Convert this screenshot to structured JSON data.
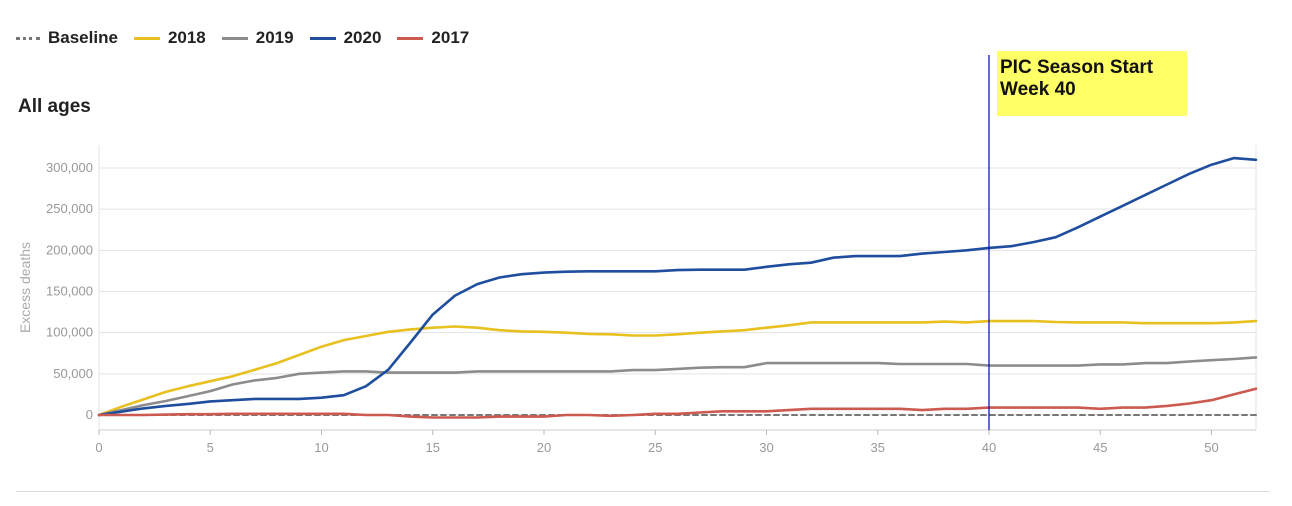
{
  "legend": {
    "items": [
      {
        "label": "Baseline",
        "color": "#777777",
        "dashed": true
      },
      {
        "label": "2018",
        "color": "#e8c020"
      },
      {
        "label": "2019",
        "color": "#8c8c8c"
      },
      {
        "label": "2020",
        "color": "#1f4e9e"
      },
      {
        "label": "2017",
        "color": "#cc5a50"
      }
    ]
  },
  "panel_title": "All ages",
  "annotation": {
    "line1": "PIC Season Start",
    "line2": "Week 40",
    "week": 40,
    "line_color": "#0000cc",
    "box_color": "#ffff66"
  },
  "chart_data": {
    "type": "line",
    "title": "All ages",
    "xlabel": "",
    "ylabel": "Excess deaths",
    "xlim": [
      0,
      52
    ],
    "ylim": [
      -12000,
      330000
    ],
    "xticks": [
      0,
      5,
      10,
      15,
      20,
      25,
      30,
      35,
      40,
      45,
      50
    ],
    "yticks": [
      0,
      50000,
      100000,
      150000,
      200000,
      250000,
      300000
    ],
    "ytick_labels": [
      "0",
      "50,000",
      "100,000",
      "150,000",
      "200,000",
      "250,000",
      "300,000"
    ],
    "grid": true,
    "legend_position": "top-left",
    "series": [
      {
        "name": "Baseline",
        "color": "#777777",
        "dashed": true,
        "x": [
          0,
          52
        ],
        "y": [
          0,
          0
        ]
      },
      {
        "name": "2018",
        "color": "#e8c020",
        "x": [
          0,
          1,
          2,
          3,
          4,
          5,
          6,
          7,
          8,
          9,
          10,
          11,
          12,
          13,
          14,
          15,
          16,
          17,
          18,
          19,
          20,
          21,
          22,
          23,
          24,
          25,
          26,
          27,
          28,
          29,
          30,
          31,
          32,
          33,
          34,
          35,
          36,
          37,
          38,
          39,
          40,
          41,
          42,
          43,
          44,
          45,
          46,
          47,
          48,
          49,
          50,
          51,
          52
        ],
        "y": [
          0,
          10000,
          19000,
          28000,
          35000,
          41000,
          47000,
          55000,
          63000,
          73000,
          83000,
          91000,
          96000,
          101000,
          104000,
          106000,
          107500,
          106000,
          103000,
          101500,
          101000,
          100000,
          98500,
          98000,
          96500,
          96500,
          98000,
          100000,
          101500,
          103000,
          106000,
          109000,
          112500,
          112500,
          112500,
          112500,
          112500,
          112500,
          113500,
          112500,
          114000,
          114000,
          114000,
          113000,
          112500,
          112500,
          112500,
          111500,
          111500,
          111500,
          111500,
          112500,
          114000
        ]
      },
      {
        "name": "2019",
        "color": "#8c8c8c",
        "x": [
          0,
          1,
          2,
          3,
          4,
          5,
          6,
          7,
          8,
          9,
          10,
          11,
          12,
          13,
          14,
          15,
          16,
          17,
          18,
          19,
          20,
          21,
          22,
          23,
          24,
          25,
          26,
          27,
          28,
          29,
          30,
          31,
          32,
          33,
          34,
          35,
          36,
          37,
          38,
          39,
          40,
          41,
          42,
          43,
          44,
          45,
          46,
          47,
          48,
          49,
          50,
          51,
          52
        ],
        "y": [
          0,
          6000,
          12000,
          17000,
          23000,
          29000,
          37000,
          42000,
          45000,
          50000,
          51500,
          53000,
          53000,
          51500,
          51500,
          51500,
          51500,
          53000,
          53000,
          53000,
          53000,
          53000,
          53000,
          53000,
          54500,
          54500,
          56000,
          57500,
          58000,
          58000,
          63000,
          63000,
          63000,
          63000,
          63000,
          63000,
          62000,
          62000,
          62000,
          62000,
          60000,
          60000,
          60000,
          60000,
          60000,
          61500,
          61500,
          63000,
          63000,
          65000,
          66500,
          68000,
          70000
        ]
      },
      {
        "name": "2020",
        "color": "#1f4e9e",
        "x": [
          0,
          1,
          2,
          3,
          4,
          5,
          6,
          7,
          8,
          9,
          10,
          11,
          12,
          13,
          14,
          15,
          16,
          17,
          18,
          19,
          20,
          21,
          22,
          23,
          24,
          25,
          26,
          27,
          28,
          29,
          30,
          31,
          32,
          33,
          34,
          35,
          36,
          37,
          38,
          39,
          40,
          41,
          42,
          43,
          44,
          45,
          46,
          47,
          48,
          49,
          50,
          51,
          52
        ],
        "y": [
          0,
          4000,
          8000,
          11000,
          13500,
          16500,
          18000,
          19500,
          19500,
          19500,
          21000,
          24000,
          35000,
          55000,
          88000,
          122000,
          145000,
          159000,
          167000,
          171000,
          173000,
          174000,
          174500,
          174500,
          174500,
          174500,
          176000,
          176500,
          176500,
          176500,
          180000,
          183000,
          185000,
          191000,
          193000,
          193000,
          193000,
          196000,
          198000,
          200000,
          203000,
          205000,
          210000,
          216000,
          228000,
          241000,
          254000,
          267000,
          280000,
          293000,
          304000,
          312000,
          310000
        ]
      },
      {
        "name": "2017",
        "color": "#cc5a50",
        "x": [
          0,
          1,
          2,
          3,
          4,
          5,
          6,
          7,
          8,
          9,
          10,
          11,
          12,
          13,
          14,
          15,
          16,
          17,
          18,
          19,
          20,
          21,
          22,
          23,
          24,
          25,
          26,
          27,
          28,
          29,
          30,
          31,
          32,
          33,
          34,
          35,
          36,
          37,
          38,
          39,
          40,
          41,
          42,
          43,
          44,
          45,
          46,
          47,
          48,
          49,
          50,
          51,
          52
        ],
        "y": [
          0,
          0,
          0,
          500,
          1000,
          1000,
          1500,
          1500,
          1500,
          1500,
          1500,
          1500,
          0,
          0,
          -2000,
          -3000,
          -3000,
          -3000,
          -2000,
          -2000,
          -2000,
          0,
          0,
          -1000,
          0,
          1500,
          1500,
          3000,
          4500,
          4500,
          4500,
          6000,
          7500,
          7500,
          7500,
          7500,
          7500,
          6000,
          7500,
          7500,
          9000,
          9000,
          9000,
          9000,
          9000,
          7500,
          9000,
          9000,
          11000,
          14000,
          18000,
          25000,
          32000
        ]
      }
    ]
  }
}
